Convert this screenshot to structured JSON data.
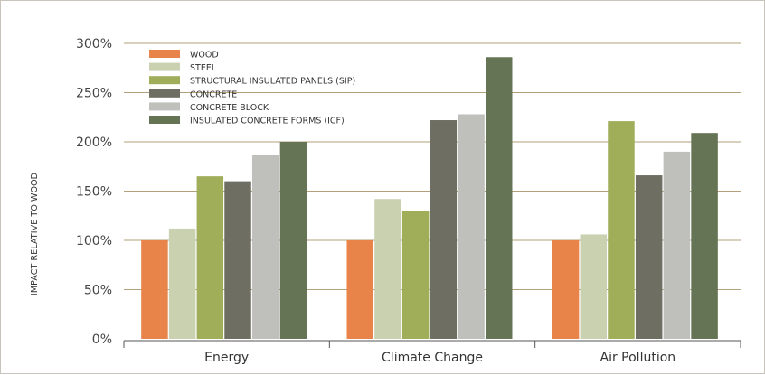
{
  "chart_data": {
    "type": "bar",
    "title": "",
    "xlabel": "",
    "ylabel": "IMPACT RELATIVE TO WOOD",
    "ylim": [
      0,
      300
    ],
    "ytick_step": 50,
    "ytick_suffix": "%",
    "grid": true,
    "legend_position": "top-left",
    "categories": [
      "Energy",
      "Climate Change",
      "Air Pollution"
    ],
    "series": [
      {
        "name": "WOOD",
        "color": "#e8834a",
        "values": [
          100,
          100,
          100
        ]
      },
      {
        "name": "STEEL",
        "color": "#c9d1b0",
        "values": [
          112,
          142,
          106
        ]
      },
      {
        "name": "STRUCTURAL INSULATED PANELS (SIP)",
        "color": "#a0ae5a",
        "values": [
          165,
          130,
          221
        ]
      },
      {
        "name": "CONCRETE",
        "color": "#6e6e62",
        "values": [
          160,
          222,
          166
        ]
      },
      {
        "name": "CONCRETE BLOCK",
        "color": "#bfc0bc",
        "values": [
          187,
          228,
          190
        ]
      },
      {
        "name": "INSULATED CONCRETE FORMS (ICF)",
        "color": "#647454",
        "values": [
          200,
          286,
          209
        ]
      }
    ],
    "colors": {
      "grid": "#b3a07a",
      "axis": "#555555"
    }
  }
}
